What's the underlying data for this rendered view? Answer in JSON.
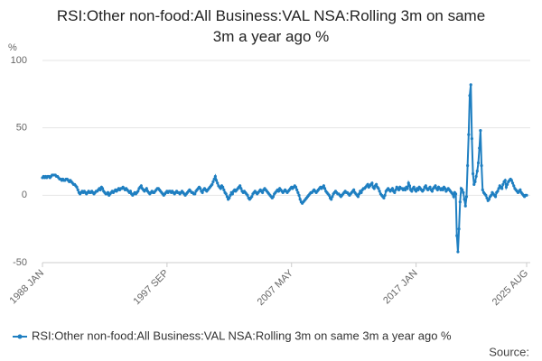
{
  "chart_data": {
    "type": "line",
    "title": "RSI:Other non-food:All Business:VAL NSA:Rolling 3m on same 3m a year ago %",
    "y_label": "%",
    "source": "Source:",
    "categories": [
      "1988 JAN",
      null,
      null,
      null,
      null,
      null,
      null,
      null,
      null,
      null,
      null,
      null,
      null,
      null,
      null,
      null,
      null,
      null,
      null,
      null,
      null,
      null,
      null,
      null,
      null,
      null,
      null,
      null,
      null,
      null,
      null,
      null,
      null,
      null,
      null,
      null,
      null,
      null,
      null,
      null,
      null,
      null,
      null,
      null,
      null,
      null,
      null,
      null,
      null,
      null,
      null,
      null,
      null,
      null,
      null,
      null,
      null,
      null,
      null,
      null,
      null,
      null,
      null,
      null,
      null,
      null,
      null,
      null,
      null,
      null,
      null,
      null,
      null,
      null,
      null,
      null,
      null,
      null,
      null,
      null,
      null,
      null,
      null,
      null,
      null,
      null,
      null,
      null,
      null,
      null,
      null,
      null,
      null,
      null,
      null,
      null,
      null,
      null,
      null,
      null,
      null,
      null,
      null,
      null,
      null,
      null,
      null,
      null,
      null,
      null,
      null,
      null,
      null,
      null,
      null,
      null,
      "1997 SEP",
      null,
      null,
      null,
      null,
      null,
      null,
      null,
      null,
      null,
      null,
      null,
      null,
      null,
      null,
      null,
      null,
      null,
      null,
      null,
      null,
      null,
      null,
      null,
      null,
      null,
      null,
      null,
      null,
      null,
      null,
      null,
      null,
      null,
      null,
      null,
      null,
      null,
      null,
      null,
      null,
      null,
      null,
      null,
      null,
      null,
      null,
      null,
      null,
      null,
      null,
      null,
      null,
      null,
      null,
      null,
      null,
      null,
      null,
      null,
      null,
      null,
      null,
      null,
      null,
      null,
      null,
      null,
      null,
      null,
      null,
      null,
      null,
      null,
      null,
      null,
      null,
      null,
      null,
      null,
      null,
      null,
      null,
      null,
      null,
      null,
      null,
      null,
      null,
      null,
      null,
      null,
      null,
      null,
      null,
      null,
      null,
      null,
      null,
      null,
      null,
      null,
      null,
      null,
      null,
      null,
      null,
      null,
      null,
      null,
      null,
      null,
      null,
      null,
      null,
      null,
      "2007 MAY",
      null,
      null,
      null,
      null,
      null,
      null,
      null,
      null,
      null,
      null,
      null,
      null,
      null,
      null,
      null,
      null,
      null,
      null,
      null,
      null,
      null,
      null,
      null,
      null,
      null,
      null,
      null,
      null,
      null,
      null,
      null,
      null,
      null,
      null,
      null,
      null,
      null,
      null,
      null,
      null,
      null,
      null,
      null,
      null,
      null,
      null,
      null,
      null,
      null,
      null,
      null,
      null,
      null,
      null,
      null,
      null,
      null,
      null,
      null,
      null,
      null,
      null,
      null,
      null,
      null,
      null,
      null,
      null,
      null,
      null,
      null,
      null,
      null,
      null,
      null,
      null,
      null,
      null,
      null,
      null,
      null,
      null,
      null,
      null,
      null,
      null,
      null,
      null,
      null,
      null,
      null,
      null,
      null,
      null,
      null,
      null,
      null,
      null,
      null,
      null,
      null,
      null,
      null,
      null,
      null,
      null,
      null,
      null,
      null,
      null,
      null,
      null,
      null,
      null,
      null,
      "2017 JAN",
      null,
      null,
      null,
      null,
      null,
      null,
      null,
      null,
      null,
      null,
      null,
      null,
      null,
      null,
      null,
      null,
      null,
      null,
      null,
      null,
      null,
      null,
      null,
      null,
      null,
      null,
      null,
      null,
      null,
      null,
      null,
      null,
      null,
      null,
      null,
      null,
      null,
      null,
      null,
      null,
      null,
      null,
      null,
      null,
      null,
      null,
      null,
      null,
      null,
      null,
      null,
      null,
      null,
      null,
      null,
      null,
      null,
      null,
      null,
      null,
      null,
      null,
      null,
      null,
      null,
      null,
      null,
      null,
      null,
      null,
      null,
      null,
      null,
      null,
      null,
      null,
      null,
      null,
      null,
      null,
      null,
      null,
      null,
      null,
      null,
      null,
      null,
      null,
      null,
      null,
      null,
      null,
      null,
      null,
      null,
      null,
      null,
      null,
      null,
      null,
      null,
      null,
      "2025 AUG"
    ],
    "series": [
      {
        "name": "RSI:Other non-food:All Business:VAL NSA:Rolling 3m on same 3m a year ago %",
        "color": "#1f7fc1",
        "values": [
          13,
          14,
          13,
          14,
          13,
          14,
          14,
          13,
          14,
          15,
          15,
          15,
          15,
          14,
          14,
          13,
          12,
          12,
          11,
          12,
          11,
          11,
          12,
          12,
          11,
          10,
          11,
          10,
          9,
          8,
          8,
          7,
          6,
          4,
          2,
          1,
          2,
          3,
          2,
          3,
          2,
          1,
          2,
          3,
          2,
          2,
          3,
          2,
          1,
          2,
          3,
          3,
          4,
          5,
          4,
          6,
          5,
          3,
          2,
          1,
          1,
          2,
          0,
          1,
          2,
          3,
          2,
          3,
          4,
          3,
          4,
          5,
          4,
          5,
          5,
          6,
          5,
          4,
          5,
          4,
          3,
          2,
          3,
          1,
          0,
          1,
          2,
          1,
          2,
          3,
          5,
          6,
          7,
          5,
          4,
          3,
          4,
          5,
          3,
          2,
          1,
          2,
          3,
          2,
          2,
          3,
          4,
          5,
          5,
          4,
          3,
          2,
          1,
          0,
          1,
          2,
          3,
          2,
          3,
          3,
          2,
          3,
          2,
          1,
          2,
          3,
          2,
          2,
          1,
          2,
          3,
          2,
          1,
          0,
          1,
          2,
          3,
          4,
          3,
          2,
          2,
          1,
          1,
          3,
          4,
          5,
          6,
          5,
          3,
          2,
          4,
          5,
          4,
          3,
          4,
          5,
          6,
          7,
          8,
          10,
          12,
          14,
          11,
          9,
          7,
          6,
          5,
          7,
          6,
          4,
          2,
          1,
          -1,
          -3,
          -2,
          0,
          2,
          1,
          3,
          4,
          3,
          4,
          5,
          6,
          7,
          5,
          3,
          2,
          3,
          2,
          1,
          0,
          -2,
          -3,
          -2,
          -1,
          1,
          2,
          3,
          2,
          1,
          2,
          3,
          4,
          3,
          2,
          4,
          5,
          4,
          3,
          2,
          1,
          0,
          -1,
          -2,
          -1,
          1,
          2,
          3,
          4,
          3,
          5,
          4,
          3,
          2,
          3,
          4,
          3,
          2,
          3,
          4,
          5,
          6,
          5,
          6,
          7,
          6,
          4,
          2,
          0,
          -3,
          -5,
          -6,
          -5,
          -4,
          -3,
          -2,
          -1,
          0,
          1,
          2,
          2,
          3,
          4,
          3,
          2,
          3,
          4,
          5,
          6,
          5,
          6,
          7,
          5,
          3,
          2,
          1,
          0,
          -2,
          -3,
          -1,
          1,
          2,
          3,
          2,
          1,
          1,
          0,
          -1,
          0,
          1,
          2,
          3,
          2,
          2,
          1,
          0,
          1,
          2,
          3,
          4,
          2,
          1,
          0,
          -1,
          1,
          3,
          2,
          4,
          5,
          5,
          6,
          7,
          8,
          6,
          7,
          8,
          9,
          6,
          5,
          7,
          8,
          6,
          5,
          3,
          1,
          0,
          -1,
          -2,
          0,
          3,
          4,
          5,
          4,
          3,
          4,
          5,
          3,
          2,
          4,
          6,
          5,
          4,
          6,
          5,
          5,
          4,
          5,
          4,
          6,
          5,
          9,
          7,
          4,
          3,
          5,
          6,
          4,
          3,
          5,
          4,
          6,
          5,
          4,
          3,
          4,
          6,
          7,
          5,
          4,
          5,
          6,
          4,
          3,
          5,
          6,
          7,
          5,
          4,
          6,
          5,
          4,
          5,
          4,
          6,
          5,
          3,
          4,
          5,
          4,
          3,
          2,
          1,
          -1,
          2,
          1,
          -30,
          -42,
          -25,
          -5,
          5,
          4,
          2,
          -3,
          -8,
          -1,
          22,
          45,
          74,
          82,
          42,
          16,
          8,
          10,
          14,
          18,
          24,
          35,
          48,
          22,
          4,
          2,
          1,
          0,
          -2,
          -4,
          -3,
          -1,
          0,
          2,
          1,
          0,
          -1,
          2,
          3,
          5,
          7,
          6,
          5,
          8,
          10,
          11,
          6,
          8,
          10,
          11,
          12,
          11,
          9,
          7,
          5,
          4,
          3,
          2,
          3,
          4,
          2,
          1,
          0,
          -1,
          0,
          0
        ]
      }
    ],
    "ylim": [
      -50,
      100
    ],
    "yticks": [
      -50,
      0,
      50,
      100
    ],
    "grid": true,
    "legend": "bottom"
  }
}
